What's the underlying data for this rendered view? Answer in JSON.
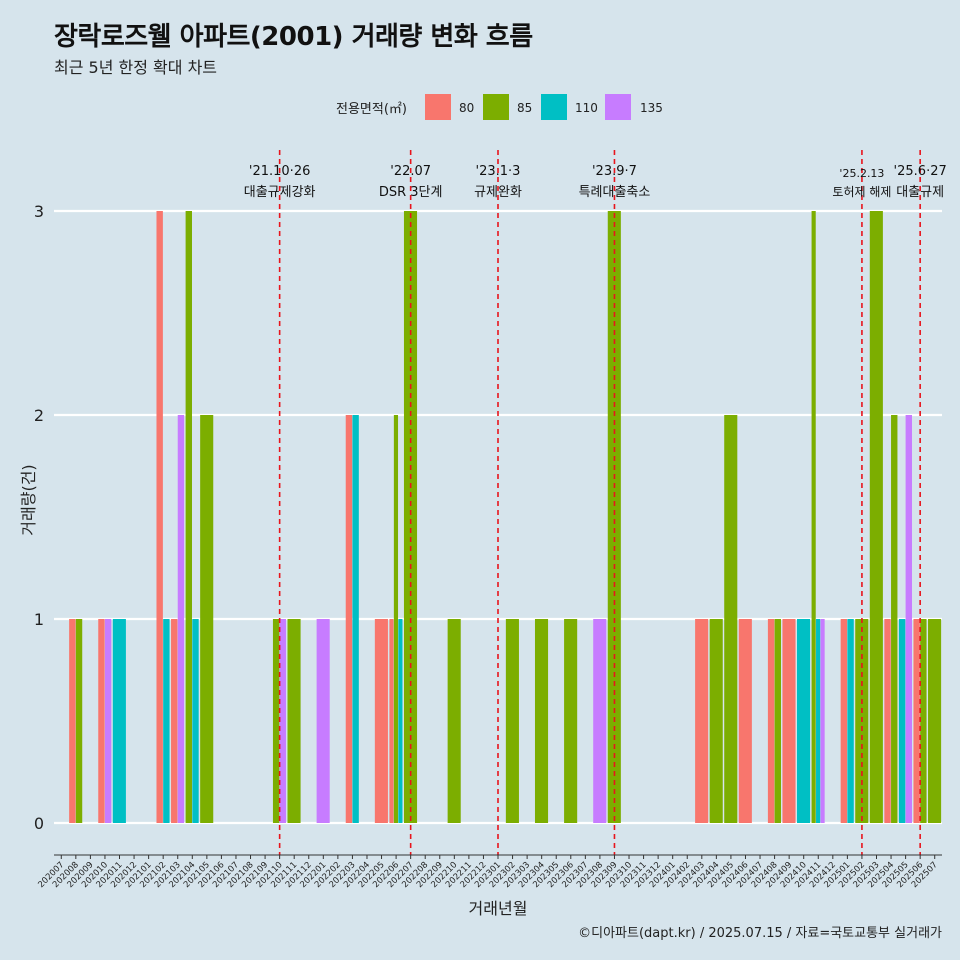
{
  "title": "장락로즈웰 아파트(2001) 거래량 변화 흐름",
  "subtitle": "최근 5년 한정 확대 차트",
  "caption": "©디아파트(dapt.kr) / 2025.07.15 / 자료=국토교통부 실거래가",
  "legend": {
    "title": "전용면적(㎡)",
    "position": "top",
    "items": [
      {
        "label": "80",
        "color": "#F8766D"
      },
      {
        "label": "85",
        "color": "#7CAE00"
      },
      {
        "label": "110",
        "color": "#00BFC4"
      },
      {
        "label": "135",
        "color": "#C77CFF"
      }
    ]
  },
  "chart_data": {
    "type": "bar",
    "xlabel": "거래년월",
    "ylabel": "거래량(건)",
    "ylim": [
      0,
      3
    ],
    "yticks": [
      0,
      1,
      2,
      3
    ],
    "grid": true,
    "categories": [
      "202007",
      "202008",
      "202009",
      "202010",
      "202011",
      "202012",
      "202101",
      "202102",
      "202103",
      "202104",
      "202105",
      "202106",
      "202107",
      "202108",
      "202109",
      "202110",
      "202111",
      "202112",
      "202201",
      "202202",
      "202203",
      "202204",
      "202205",
      "202206",
      "202207",
      "202208",
      "202209",
      "202210",
      "202211",
      "202212",
      "202301",
      "202302",
      "202303",
      "202304",
      "202305",
      "202306",
      "202307",
      "202308",
      "202309",
      "202310",
      "202311",
      "202312",
      "202401",
      "202402",
      "202403",
      "202404",
      "202405",
      "202406",
      "202407",
      "202408",
      "202409",
      "202410",
      "202411",
      "202412",
      "202501",
      "202502",
      "202503",
      "202504",
      "202505",
      "202506",
      "202507"
    ],
    "series": [
      {
        "name": "80",
        "values": [
          0,
          1,
          0,
          1,
          0,
          0,
          0,
          3,
          1,
          0,
          0,
          0,
          0,
          0,
          0,
          0,
          0,
          0,
          0,
          0,
          2,
          0,
          1,
          1,
          0,
          0,
          0,
          0,
          0,
          0,
          0,
          0,
          0,
          0,
          0,
          0,
          0,
          0,
          0,
          0,
          0,
          0,
          0,
          0,
          1,
          0,
          0,
          1,
          0,
          1,
          1,
          0,
          0,
          0,
          1,
          0,
          0,
          1,
          0,
          1,
          0
        ]
      },
      {
        "name": "85",
        "values": [
          0,
          1,
          0,
          0,
          0,
          0,
          0,
          0,
          0,
          3,
          2,
          0,
          0,
          0,
          0,
          1,
          1,
          0,
          0,
          0,
          0,
          0,
          0,
          2,
          3,
          0,
          0,
          1,
          0,
          0,
          0,
          1,
          0,
          1,
          0,
          1,
          0,
          0,
          3,
          0,
          0,
          0,
          0,
          0,
          0,
          1,
          2,
          0,
          0,
          1,
          0,
          0,
          3,
          0,
          0,
          1,
          3,
          2,
          0,
          1,
          1
        ]
      },
      {
        "name": "110",
        "values": [
          0,
          0,
          0,
          0,
          1,
          0,
          0,
          1,
          0,
          1,
          0,
          0,
          0,
          0,
          0,
          0,
          0,
          0,
          0,
          0,
          2,
          0,
          0,
          1,
          0,
          0,
          0,
          0,
          0,
          0,
          0,
          0,
          0,
          0,
          0,
          0,
          0,
          0,
          0,
          0,
          0,
          0,
          0,
          0,
          0,
          0,
          0,
          0,
          0,
          0,
          0,
          1,
          1,
          0,
          1,
          0,
          0,
          0,
          1,
          0,
          0
        ]
      },
      {
        "name": "135",
        "values": [
          0,
          0,
          0,
          1,
          0,
          0,
          0,
          0,
          2,
          0,
          0,
          0,
          0,
          0,
          0,
          1,
          0,
          0,
          1,
          0,
          0,
          0,
          0,
          0,
          0,
          0,
          0,
          0,
          0,
          0,
          0,
          0,
          0,
          0,
          0,
          0,
          0,
          1,
          0,
          0,
          0,
          0,
          0,
          0,
          0,
          0,
          0,
          0,
          0,
          0,
          0,
          0,
          1,
          0,
          0,
          0,
          0,
          0,
          2,
          0,
          0
        ]
      }
    ],
    "annotations": [
      {
        "x": "202110",
        "date": "'21.10·26",
        "label": "대출규제강화"
      },
      {
        "x": "202207",
        "date": "'22.07",
        "label": "DSR 3단계"
      },
      {
        "x": "202301",
        "date": "'23.1·3",
        "label": "규제완화"
      },
      {
        "x": "202309",
        "date": "'23.9·7",
        "label": "특례대출축소"
      },
      {
        "x": "202502",
        "date": "'25.2.13",
        "label": "토허제 해제"
      },
      {
        "x": "202506",
        "date": "'25.6·27",
        "label": "대출규제"
      }
    ]
  }
}
